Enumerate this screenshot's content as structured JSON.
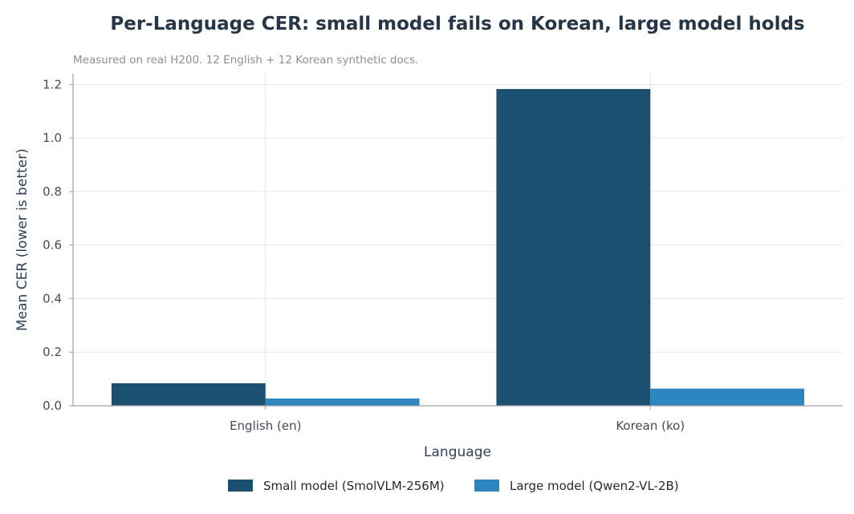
{
  "chart_data": {
    "type": "bar",
    "title": "Per-Language CER: small model fails on Korean, large model holds",
    "subtitle": "Measured on real H200. 12 English + 12 Korean synthetic docs.",
    "xlabel": "Language",
    "ylabel": "Mean CER (lower is better)",
    "categories": [
      "English (en)",
      "Korean (ko)"
    ],
    "series": [
      {
        "name": "Small model (SmolVLM-256M)",
        "color": "#1c5071",
        "values": [
          0.084,
          1.183
        ]
      },
      {
        "name": "Large model (Qwen2-VL-2B)",
        "color": "#2e86c1",
        "values": [
          0.027,
          0.064
        ]
      }
    ],
    "ylim": [
      0,
      1.24
    ],
    "yticks": [
      "0.0",
      "0.2",
      "0.4",
      "0.6",
      "0.8",
      "1.0",
      "1.2"
    ],
    "grid": true,
    "legend_position": "bottom"
  }
}
